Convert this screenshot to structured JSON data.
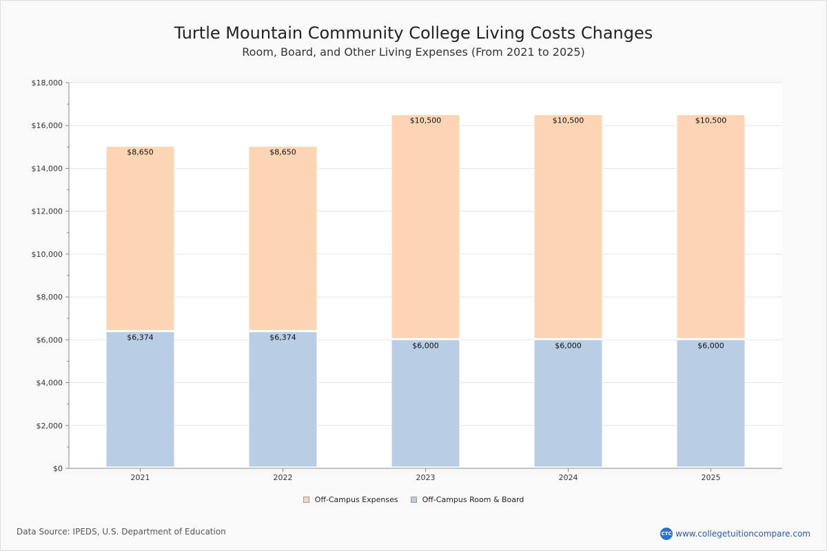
{
  "chart_data": {
    "type": "bar",
    "stacked": true,
    "title": "Turtle Mountain Community College Living Costs Changes",
    "subtitle": "Room, Board, and Other Living Expenses (From 2021 to 2025)",
    "categories": [
      "2021",
      "2022",
      "2023",
      "2024",
      "2025"
    ],
    "series": [
      {
        "name": "Off-Campus Room & Board",
        "color": "#b9cde4",
        "values": [
          6374,
          6374,
          6000,
          6000,
          6000
        ],
        "labels": [
          "$6,374",
          "$6,374",
          "$6,000",
          "$6,000",
          "$6,000"
        ]
      },
      {
        "name": "Off-Campus Expenses",
        "color": "#fcd5b4",
        "values": [
          8650,
          8650,
          10500,
          10500,
          10500
        ],
        "labels": [
          "$8,650",
          "$8,650",
          "$10,500",
          "$10,500",
          "$10,500"
        ]
      }
    ],
    "ylim": [
      0,
      18000
    ],
    "yticks": [
      0,
      2000,
      4000,
      6000,
      8000,
      10000,
      12000,
      14000,
      16000,
      18000
    ],
    "ytick_labels": [
      "$0",
      "$2,000",
      "$4,000",
      "$6,000",
      "$8,000",
      "$10,000",
      "$12,000",
      "$14,000",
      "$16,000",
      "$18,000"
    ],
    "xlabel": "",
    "ylabel": "",
    "grid": true,
    "legend_position": "bottom-center"
  },
  "footer": {
    "source": "Data Source: IPEDS, U.S. Department of Education",
    "site": "www.collegetuitioncompare.com",
    "logo_text": "CTC"
  }
}
